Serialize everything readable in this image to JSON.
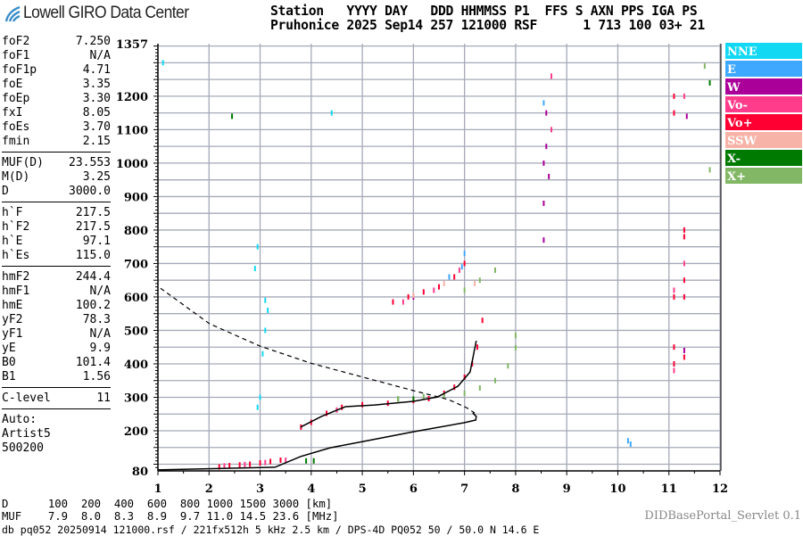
{
  "logo": {
    "text": "Lowell GIRO Data Center"
  },
  "header": {
    "line1": "Station   YYYY DAY   DDD HHMMSS P1  FFS S AXN PPS IGA PS",
    "line2": "Pruhonice 2025 Sep14 257 121000 RSF      1 713 100 03+ 21"
  },
  "params": [
    [
      {
        "k": "foF2",
        "v": "7.250"
      },
      {
        "k": "foF1",
        "v": "N/A"
      },
      {
        "k": "foF1p",
        "v": "4.71"
      },
      {
        "k": "foE",
        "v": "3.35"
      },
      {
        "k": "foEp",
        "v": "3.30"
      },
      {
        "k": "fxI",
        "v": "8.05"
      },
      {
        "k": "foEs",
        "v": "3.70"
      },
      {
        "k": "fmin",
        "v": "2.15"
      }
    ],
    [
      {
        "k": "MUF(D)",
        "v": "23.553"
      },
      {
        "k": "M(D)",
        "v": "3.25"
      },
      {
        "k": "D",
        "v": "3000.0"
      }
    ],
    [
      {
        "k": "h`F",
        "v": "217.5"
      },
      {
        "k": "h`F2",
        "v": "217.5"
      },
      {
        "k": "h`E",
        "v": "97.1"
      },
      {
        "k": "h`Es",
        "v": "115.0"
      }
    ],
    [
      {
        "k": "hmF2",
        "v": "244.4"
      },
      {
        "k": "hmF1",
        "v": "N/A"
      },
      {
        "k": "hmE",
        "v": "100.2"
      },
      {
        "k": "yF2",
        "v": "78.3"
      },
      {
        "k": "yF1",
        "v": "N/A"
      },
      {
        "k": "yE",
        "v": "9.9"
      },
      {
        "k": "B0",
        "v": "101.4"
      },
      {
        "k": "B1",
        "v": "1.56"
      }
    ],
    [
      {
        "k": "C-level",
        "v": "11"
      }
    ]
  ],
  "autoscale": {
    "line1": "Auto:",
    "line2": "Artist5",
    "line3": "500200"
  },
  "muf_table": {
    "d_line": "D      100  200  400  600  800 1000 1500 3000 [km]",
    "muf_line": "MUF    7.9  8.0  8.3  8.9  9.7 11.0 14.5 23.6 [MHz]"
  },
  "servlet": "DIDBasePortal_Servlet 0.1",
  "footer": "db pq052 20250914 121000.rsf / 221fx512h 5 kHz 2.5 km / DPS-4D PQ052 50 / 50.0 N 14.6 E",
  "legend": [
    {
      "label": "NNE",
      "color": "#12d8f4"
    },
    {
      "label": "E",
      "color": "#3ea8ff"
    },
    {
      "label": "W",
      "color": "#aa0099"
    },
    {
      "label": "Vo-",
      "color": "#ff3c8c"
    },
    {
      "label": "Vo+",
      "color": "#ff0033"
    },
    {
      "label": "SSW",
      "color": "#f7b3a8"
    },
    {
      "label": "X-",
      "color": "#007a00"
    },
    {
      "label": "X+",
      "color": "#82b865"
    }
  ],
  "chart_data": {
    "type": "scatter",
    "xlim": [
      1,
      12
    ],
    "ylim": [
      80,
      1357
    ],
    "x_ticks": [
      1,
      2,
      3,
      4,
      5,
      6,
      7,
      8,
      9,
      10,
      11,
      12
    ],
    "y_ticks": [
      1357,
      1200,
      1100,
      1000,
      900,
      800,
      700,
      600,
      500,
      400,
      300,
      200,
      80
    ],
    "grid": true,
    "legend_placement": "right",
    "profile_real_height": [
      [
        1.0,
        83
      ],
      [
        3.29,
        91
      ],
      [
        3.79,
        123
      ],
      [
        4.37,
        149
      ],
      [
        5.02,
        168
      ],
      [
        6.0,
        197
      ],
      [
        6.99,
        224
      ],
      [
        7.22,
        232
      ],
      [
        7.23,
        243
      ],
      [
        7.16,
        253
      ]
    ],
    "profile_dashed": [
      [
        1.05,
        626
      ],
      [
        2.01,
        520
      ],
      [
        3.0,
        453
      ],
      [
        3.99,
        402
      ],
      [
        5.02,
        360
      ],
      [
        6.0,
        320
      ],
      [
        6.69,
        293
      ],
      [
        7.04,
        269
      ],
      [
        7.2,
        253
      ]
    ],
    "trace_fit": [
      [
        3.79,
        211
      ],
      [
        4.2,
        243
      ],
      [
        4.67,
        272
      ],
      [
        5.24,
        277
      ],
      [
        6.0,
        288
      ],
      [
        6.47,
        301
      ],
      [
        6.87,
        333
      ],
      [
        7.11,
        376
      ],
      [
        7.23,
        469
      ]
    ],
    "echoes": [
      {
        "mode": "Vo+",
        "points": [
          [
            3.8,
            211
          ],
          [
            4.0,
            225
          ],
          [
            4.3,
            252
          ],
          [
            4.6,
            270
          ],
          [
            5.0,
            278
          ],
          [
            5.5,
            282
          ],
          [
            6.0,
            290
          ],
          [
            6.3,
            296
          ],
          [
            6.6,
            312
          ],
          [
            6.8,
            330
          ],
          [
            7.0,
            360
          ],
          [
            7.15,
            400
          ],
          [
            7.25,
            450
          ],
          [
            7.35,
            530
          ],
          [
            2.2,
            92
          ],
          [
            2.4,
            96
          ],
          [
            2.6,
            98
          ],
          [
            2.8,
            100
          ],
          [
            3.0,
            104
          ],
          [
            3.2,
            108
          ],
          [
            3.4,
            112
          ],
          [
            5.6,
            585
          ],
          [
            5.9,
            600
          ],
          [
            6.2,
            615
          ],
          [
            6.5,
            630
          ],
          [
            6.8,
            660
          ],
          [
            7.0,
            700
          ],
          [
            11.1,
            400
          ],
          [
            11.1,
            450
          ],
          [
            11.1,
            600
          ],
          [
            11.1,
            1150
          ],
          [
            11.1,
            1200
          ],
          [
            11.3,
            780
          ],
          [
            11.3,
            800
          ],
          [
            11.3,
            650
          ],
          [
            11.3,
            600
          ],
          [
            11.3,
            420
          ]
        ]
      },
      {
        "mode": "Vo-",
        "points": [
          [
            2.3,
            95
          ],
          [
            2.7,
            99
          ],
          [
            3.1,
            105
          ],
          [
            3.5,
            112
          ],
          [
            4.5,
            262
          ],
          [
            5.8,
            585
          ],
          [
            6.4,
            620
          ],
          [
            6.9,
            680
          ],
          [
            11.1,
            380
          ],
          [
            11.1,
            620
          ],
          [
            11.3,
            700
          ],
          [
            11.3,
            1200
          ],
          [
            8.7,
            1100
          ],
          [
            8.7,
            1260
          ]
        ]
      },
      {
        "mode": "W",
        "points": [
          [
            8.55,
            770
          ],
          [
            8.55,
            880
          ],
          [
            8.55,
            1000
          ],
          [
            8.6,
            1050
          ],
          [
            8.6,
            1150
          ],
          [
            8.65,
            960
          ],
          [
            6.0,
            600
          ],
          [
            11.35,
            1140
          ],
          [
            11.3,
            440
          ]
        ]
      },
      {
        "mode": "E",
        "points": [
          [
            6.7,
            660
          ],
          [
            6.95,
            690
          ],
          [
            7.0,
            730
          ],
          [
            8.55,
            1180
          ],
          [
            10.2,
            170
          ],
          [
            10.25,
            160
          ]
        ]
      },
      {
        "mode": "NNE",
        "points": [
          [
            2.95,
            750
          ],
          [
            2.9,
            685
          ],
          [
            3.1,
            590
          ],
          [
            3.15,
            560
          ],
          [
            3.1,
            500
          ],
          [
            3.0,
            300
          ],
          [
            2.95,
            270
          ],
          [
            3.05,
            430
          ],
          [
            1.1,
            1300
          ],
          [
            4.4,
            1150
          ]
        ]
      },
      {
        "mode": "X-",
        "points": [
          [
            3.9,
            110
          ],
          [
            4.05,
            110
          ],
          [
            6.0,
            295
          ],
          [
            5.7,
            295
          ],
          [
            2.45,
            1140
          ],
          [
            11.8,
            1240
          ]
        ]
      },
      {
        "mode": "X+",
        "points": [
          [
            5.7,
            295
          ],
          [
            6.2,
            302
          ],
          [
            6.6,
            306
          ],
          [
            7.0,
            312
          ],
          [
            7.3,
            328
          ],
          [
            7.6,
            350
          ],
          [
            7.85,
            394
          ],
          [
            8.0,
            448
          ],
          [
            8.0,
            485
          ],
          [
            7.0,
            620
          ],
          [
            7.3,
            650
          ],
          [
            7.6,
            680
          ],
          [
            11.7,
            1290
          ],
          [
            11.8,
            980
          ]
        ]
      },
      {
        "mode": "SSW",
        "points": [
          [
            6.0,
            605
          ],
          [
            6.6,
            640
          ],
          [
            7.2,
            640
          ]
        ]
      }
    ]
  }
}
